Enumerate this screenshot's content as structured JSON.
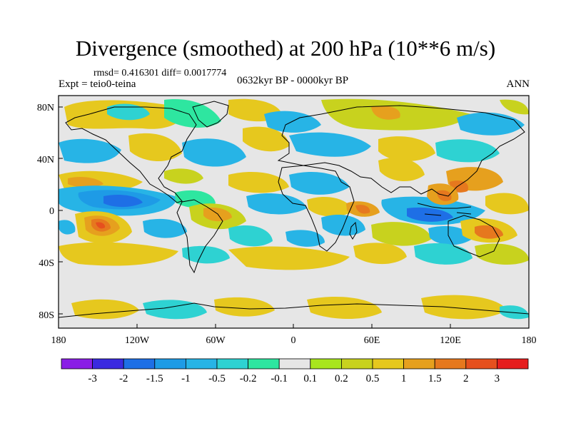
{
  "header": {
    "title": "Divergence (smoothed) at 200 hPa (10**6 m/s)",
    "stats": "rmsd= 0.416301 diff= 0.0017774",
    "experiment": "Expt = teio0-teina",
    "period": "0632kyr BP - 0000kyr BP",
    "season": "ANN"
  },
  "axes": {
    "lat_labels": [
      "80N",
      "40N",
      "0",
      "40S",
      "80S"
    ],
    "lon_labels": [
      "180",
      "120W",
      "60W",
      "0",
      "60E",
      "120E",
      "180"
    ]
  },
  "colorbar": {
    "labels": [
      "-3",
      "-2",
      "-1.5",
      "-1",
      "-0.5",
      "-0.2",
      "-0.1",
      "0.1",
      "0.2",
      "0.5",
      "1",
      "1.5",
      "2",
      "3"
    ],
    "colors": [
      "#8a1ee6",
      "#3a2ae0",
      "#1e6fe6",
      "#1e9be6",
      "#27b4e6",
      "#2ed2d2",
      "#2ee6a0",
      "#e6e6e6",
      "#a8e61e",
      "#c8d21e",
      "#e6c81e",
      "#e6a01e",
      "#e6781e",
      "#e6501e",
      "#e61e1e"
    ]
  },
  "palette": {
    "background_field": "#e6e6e6",
    "frame": "#000000"
  }
}
